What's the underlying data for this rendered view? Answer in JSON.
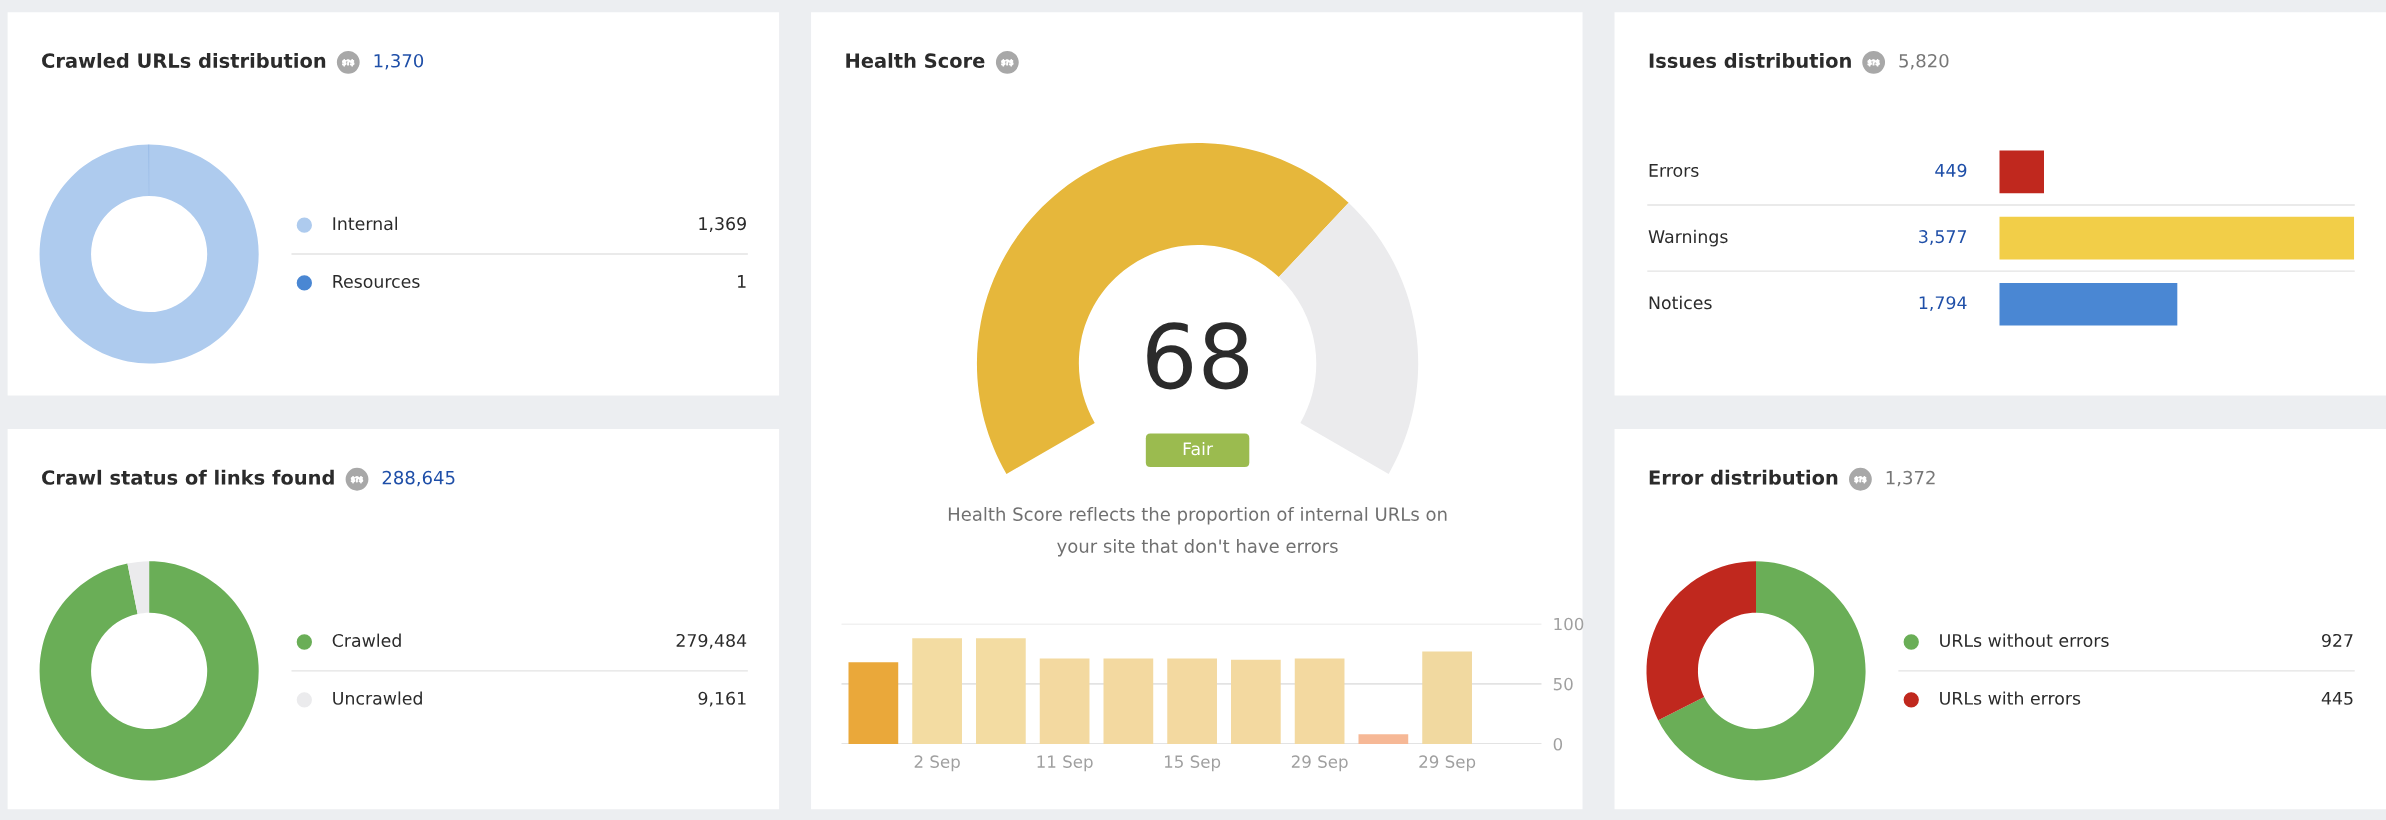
{
  "chart_data": [
    {
      "type": "donut",
      "title": "Crawled URLs distribution",
      "subtitle": "1,370",
      "categories": [
        "Internal",
        "Resources"
      ],
      "values": [
        1369,
        1
      ],
      "colors": [
        "#aecbee",
        "#4a87d3"
      ],
      "value_labels": [
        "1,369",
        "1"
      ],
      "legend": "right"
    },
    {
      "type": "donut",
      "title": "Health Score",
      "categories": [
        null,
        null
      ],
      "values": [
        68,
        32
      ],
      "value_labels": [
        "68",
        null
      ],
      "colors": [
        "#e6b73b",
        "#ebebed"
      ],
      "annotations": [
        "Fair",
        "Health Score reflects the proportion of internal URLs on your site that don't have errors"
      ]
    },
    {
      "type": "bar",
      "orientation": "horizontal",
      "title": "Issues distribution",
      "subtitle": "5,820",
      "categories": [
        "Errors",
        "Warnings",
        "Notices"
      ],
      "values": [
        449,
        3577,
        1794
      ],
      "colors": [
        "#c0281e",
        "#f2ce48",
        "#4a87d3"
      ],
      "value_labels": [
        "449",
        "3,577",
        "1,794"
      ]
    },
    {
      "type": "donut",
      "title": "Crawl status of links found",
      "subtitle": "288,645",
      "categories": [
        "Crawled",
        "Uncrawled"
      ],
      "values": [
        279484,
        9161
      ],
      "colors": [
        "#6aae57",
        "#ebebed"
      ],
      "value_labels": [
        "279,484",
        "9,161"
      ],
      "legend": "right"
    },
    {
      "type": "bar",
      "categories": [
        null,
        "2 Sep",
        null,
        "11 Sep",
        null,
        "15 Sep",
        null,
        "29 Sep",
        null,
        "29 Sep"
      ],
      "values": [
        68,
        88,
        88,
        71,
        71,
        71,
        70,
        71,
        8,
        77
      ],
      "colors": [
        "#eaa83a",
        "#f3dca2",
        "#f3dca2",
        "#f3d9a0",
        "#f3d9a0",
        "#f3d9a0",
        "#f3d9a0",
        "#f3d9a0",
        "#f6b896",
        "#f1d9a0"
      ],
      "ylim": [
        0,
        100
      ],
      "yticks": [
        0,
        50,
        100
      ],
      "grid": "y"
    },
    {
      "type": "donut",
      "title": "Error distribution",
      "subtitle": "1,372",
      "categories": [
        "URLs without errors",
        "URLs with errors"
      ],
      "values": [
        927,
        445
      ],
      "colors": [
        "#6aae57",
        "#c0281e"
      ],
      "value_labels": [
        "927",
        "445"
      ],
      "legend": "right"
    }
  ]
}
